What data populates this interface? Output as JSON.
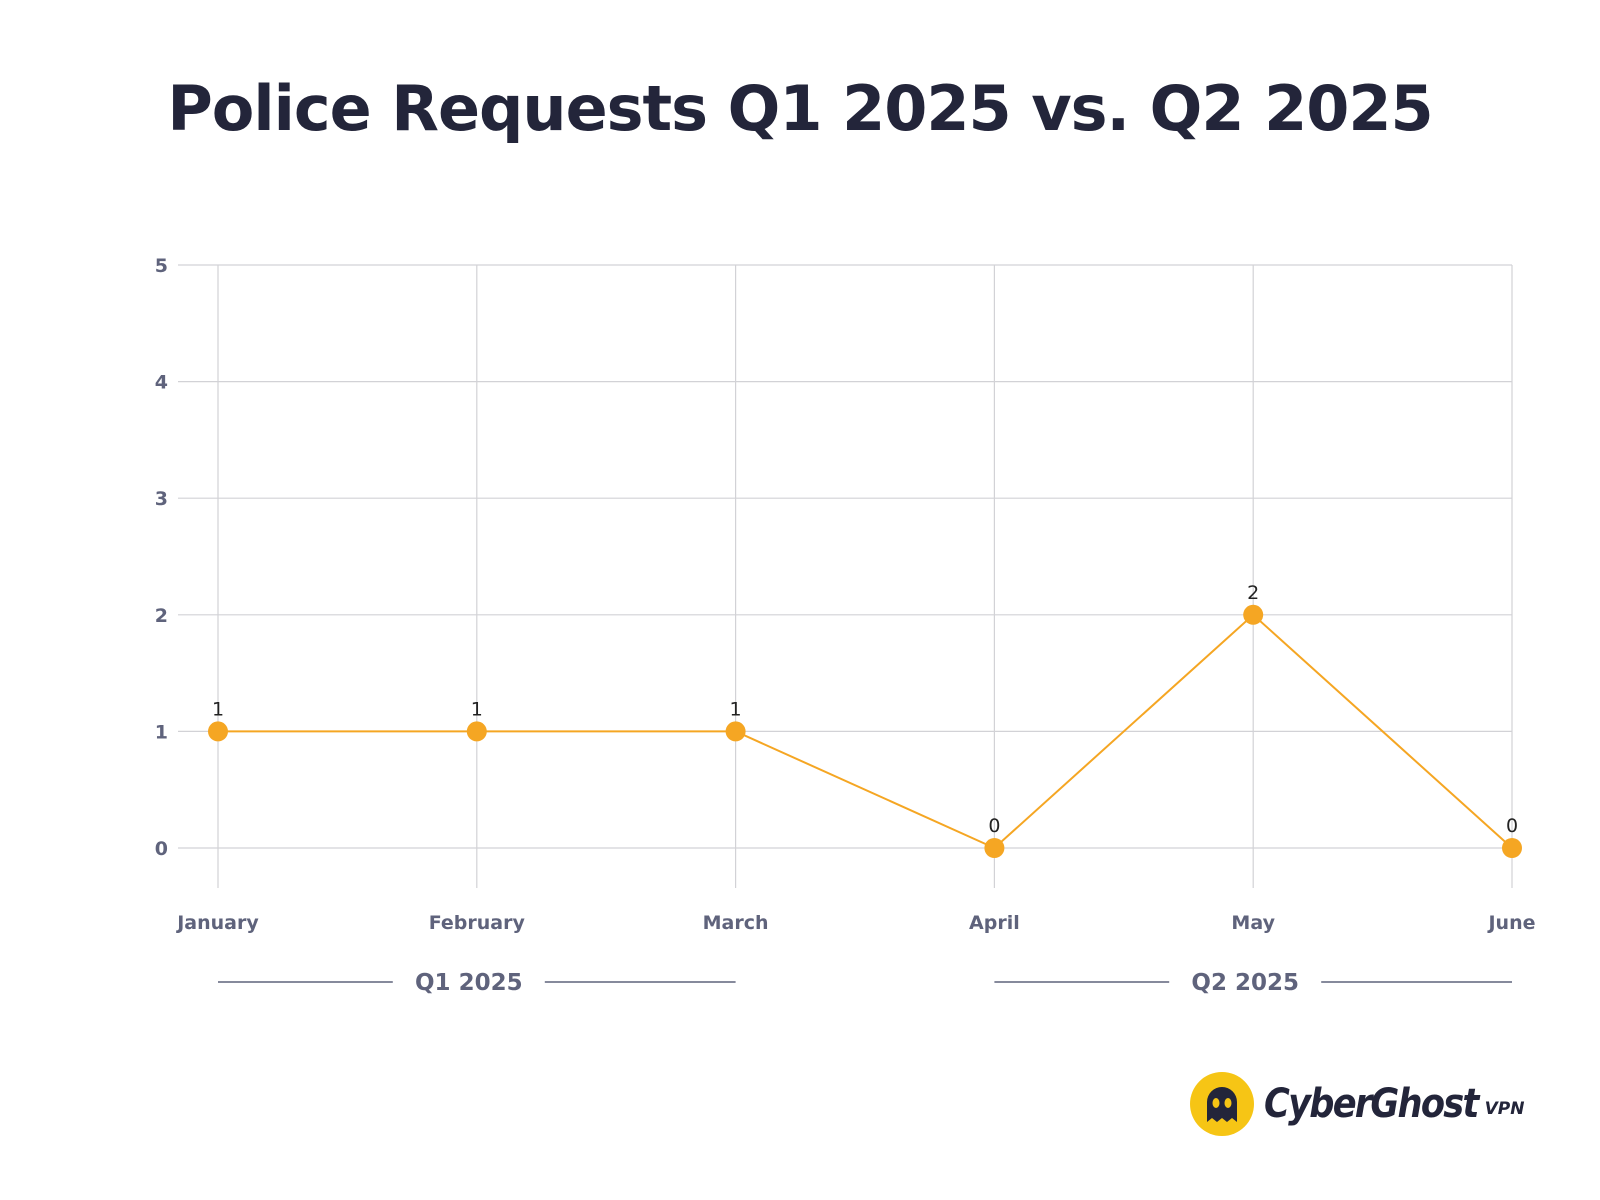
{
  "chart_data": {
    "type": "line",
    "title": "Police Requests Q1 2025 vs. Q2 2025",
    "categories": [
      "January",
      "February",
      "March",
      "April",
      "May",
      "June"
    ],
    "series": [
      {
        "values": [
          1,
          1,
          1,
          0,
          2,
          0
        ],
        "color": "#f5a623"
      }
    ],
    "data_labels": [
      "1",
      "1",
      "1",
      "0",
      "2",
      "0"
    ],
    "ylim": [
      0,
      5
    ],
    "yticks": [
      "0",
      "1",
      "2",
      "3",
      "4",
      "5"
    ],
    "grid": true,
    "groups": [
      {
        "label": "Q1 2025",
        "categories": [
          "January",
          "February",
          "March"
        ]
      },
      {
        "label": "Q2 2025",
        "categories": [
          "April",
          "May",
          "June"
        ]
      }
    ]
  },
  "brand": {
    "name": "CyberGhost",
    "suffix": "VPN",
    "logo_color": "#f6c515",
    "icon": "ghost-logo-icon"
  }
}
